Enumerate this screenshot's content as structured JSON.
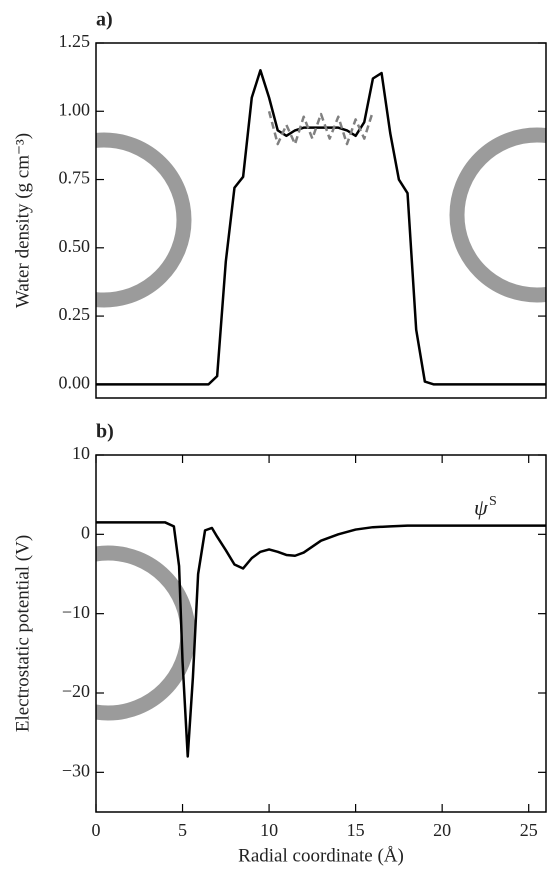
{
  "chart_data": [
    {
      "type": "line",
      "label": "a)",
      "ylabel": "Water density (g cm⁻³)",
      "x": [
        0,
        0.5,
        1,
        1.5,
        2,
        2.5,
        3,
        3.5,
        4,
        4.5,
        5,
        5.5,
        6,
        6.5,
        7,
        7.5,
        8,
        8.5,
        9,
        9.5,
        10,
        10.5,
        11,
        11.5,
        12,
        12.5,
        13,
        13.5,
        14,
        14.5,
        15,
        15.5,
        16,
        16.5,
        17,
        17.5,
        18,
        18.5,
        19,
        19.5,
        20,
        20.5,
        21,
        21.5,
        22,
        22.5,
        23,
        23.5,
        24,
        24.5,
        25,
        25.5,
        26
      ],
      "series": [
        {
          "color": "#000000",
          "dash": false,
          "values": [
            0,
            0,
            0,
            0,
            0,
            0,
            0,
            0,
            0,
            0,
            0,
            0,
            0,
            0,
            0.03,
            0.45,
            0.72,
            0.76,
            1.05,
            1.15,
            1.05,
            0.93,
            0.91,
            0.93,
            0.94,
            0.94,
            0.94,
            0.94,
            0.94,
            0.93,
            0.91,
            0.96,
            1.12,
            1.14,
            0.92,
            0.75,
            0.7,
            0.2,
            0.01,
            0,
            0,
            0,
            0,
            0,
            0,
            0,
            0,
            0,
            0,
            0,
            0,
            0,
            0
          ]
        },
        {
          "color": "#808080",
          "dash": true,
          "values": [
            null,
            null,
            null,
            null,
            null,
            null,
            null,
            null,
            null,
            null,
            null,
            null,
            null,
            null,
            null,
            null,
            null,
            null,
            null,
            null,
            1.0,
            0.88,
            0.95,
            0.88,
            0.98,
            0.9,
            0.99,
            0.9,
            0.98,
            0.88,
            0.97,
            0.9,
            1.0,
            null,
            null,
            null,
            null,
            null,
            null,
            null,
            null,
            null,
            null,
            null,
            null,
            null,
            null,
            null,
            null,
            null,
            null,
            null,
            null
          ]
        }
      ],
      "xlim": [
        0,
        26
      ],
      "ylim": [
        -0.05,
        1.25
      ],
      "yticks": [
        {
          "value": 0,
          "label": "0.00"
        },
        0.25,
        {
          "value": 0.5,
          "label": "0.50"
        },
        0.75,
        {
          "value": 1,
          "label": "1.00"
        },
        1.25
      ]
    },
    {
      "type": "line",
      "label": "b)",
      "ylabel": "Electrostatic potential (V)",
      "xlabel": "Radial coordinate (Å)",
      "annotation": "ψ",
      "annotation_superscript": "S",
      "x": [
        0,
        1,
        2,
        3,
        4,
        4.5,
        4.8,
        5.0,
        5.3,
        5.6,
        5.9,
        6.3,
        6.7,
        7.0,
        7.5,
        8.0,
        8.5,
        9.0,
        9.5,
        10,
        10.5,
        11,
        11.5,
        12,
        13,
        14,
        15,
        16,
        17,
        18,
        20,
        22,
        24,
        26
      ],
      "series": [
        {
          "color": "#000000",
          "dash": false,
          "values": [
            1.5,
            1.5,
            1.5,
            1.5,
            1.5,
            1.0,
            -4,
            -16,
            -28,
            -18,
            -5,
            0.5,
            0.8,
            -0.3,
            -2.0,
            -3.8,
            -4.3,
            -3.0,
            -2.2,
            -1.9,
            -2.2,
            -2.6,
            -2.7,
            -2.3,
            -0.8,
            0,
            0.6,
            0.9,
            1.0,
            1.1,
            1.1,
            1.1,
            1.1,
            1.1
          ]
        }
      ],
      "xlim": [
        0,
        26
      ],
      "ylim": [
        -35,
        10
      ],
      "xticks": [
        0,
        5,
        10,
        15,
        20,
        25
      ],
      "yticks": [
        {
          "value": -30,
          "label": "−30"
        },
        {
          "value": -20,
          "label": "−20"
        },
        {
          "value": -10,
          "label": "−10"
        },
        0,
        10
      ]
    }
  ]
}
